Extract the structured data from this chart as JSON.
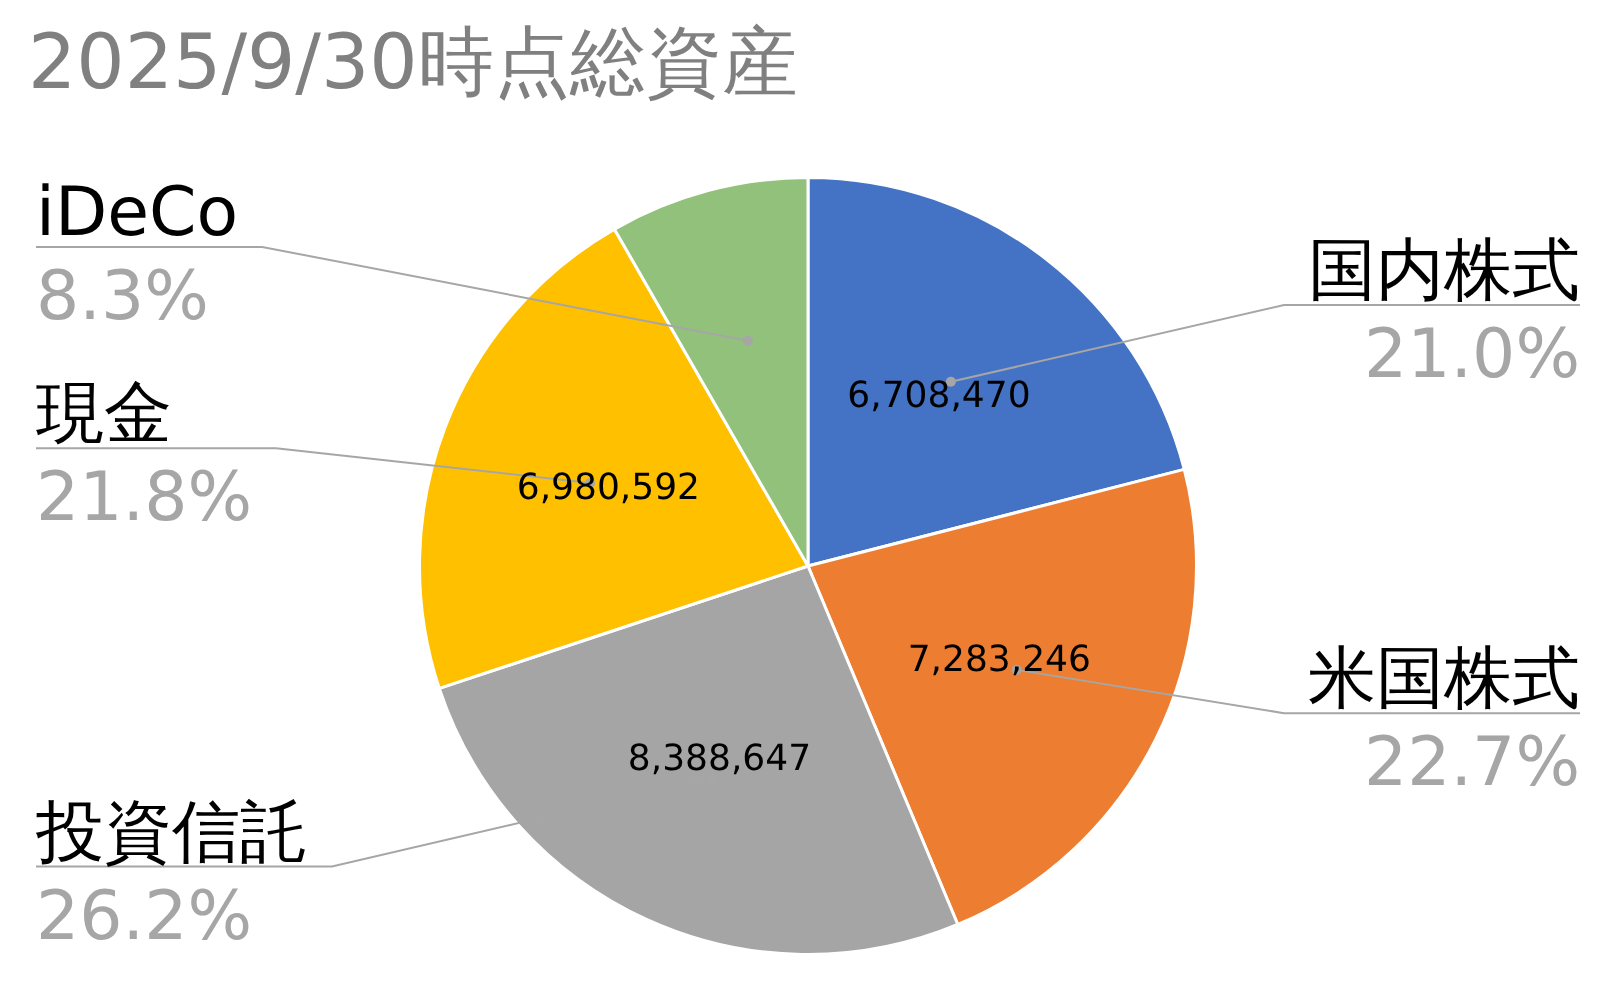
{
  "chart_data": {
    "type": "pie",
    "title": "2025/9/30時点総資産",
    "categories": [
      "国内株式",
      "米国株式",
      "投資信託",
      "現金",
      "iDeCo"
    ],
    "values": [
      21.0,
      22.7,
      26.2,
      21.8,
      8.3
    ],
    "colors": [
      "#4472c4",
      "#ed7d31",
      "#a5a5a5",
      "#ffc000",
      "#91c17a"
    ],
    "value_labels": [
      "21.0%",
      "22.7%",
      "26.2%",
      "21.8%",
      "8.3%"
    ],
    "annotations": [
      {
        "text": "6,708,470",
        "x": "国内株式"
      },
      {
        "text": "7,283,246",
        "x": "米国株式"
      },
      {
        "text": "8,388,647",
        "x": "投資信託"
      },
      {
        "text": "6,980,592",
        "x": "現金"
      }
    ],
    "legend": false
  }
}
